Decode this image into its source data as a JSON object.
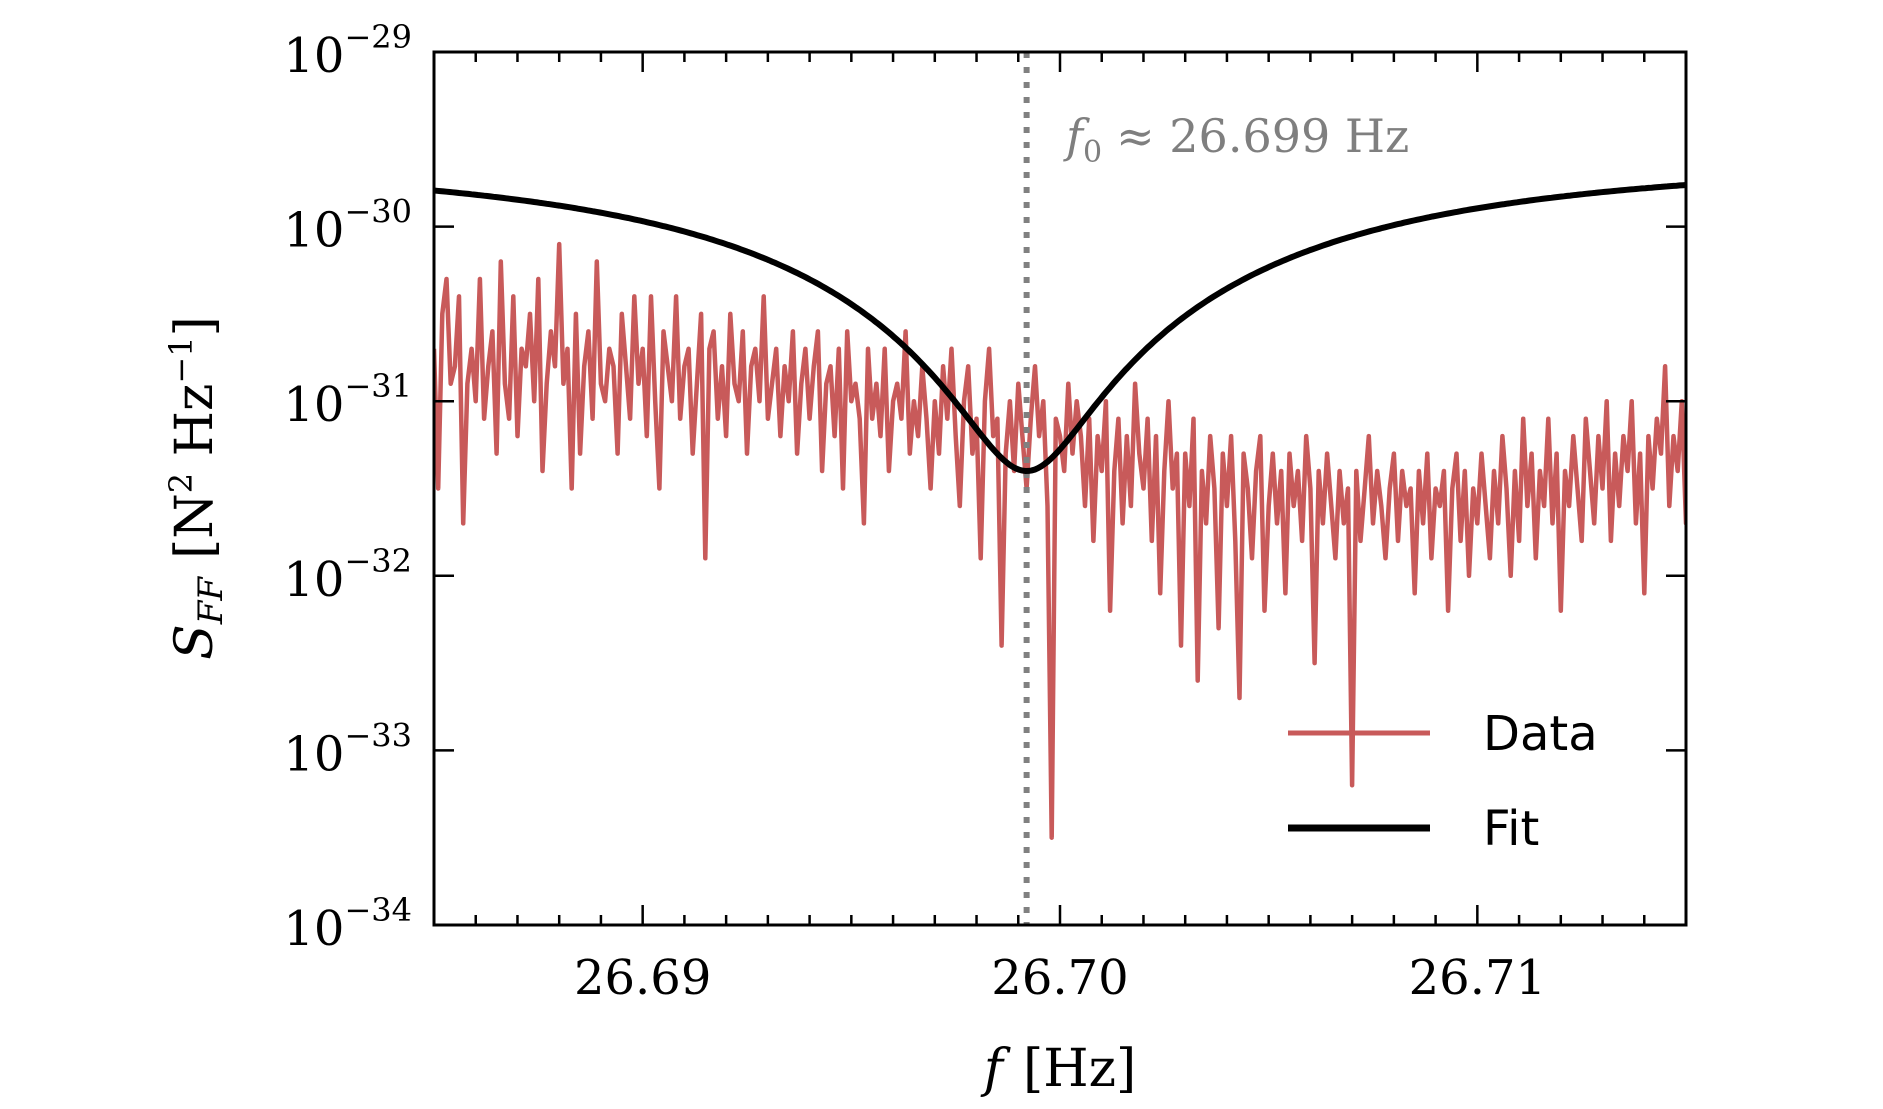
{
  "chart_data": {
    "type": "line",
    "title": "",
    "xlabel": {
      "symbol": "f",
      "unit": "[Hz]"
    },
    "ylabel": {
      "symbol": "S",
      "subscript": "FF",
      "unit_open": "[N",
      "unit_sq": "2",
      "unit_mid": " Hz",
      "unit_exp": "−1",
      "unit_close": "]"
    },
    "x_scale": "linear",
    "y_scale": "log",
    "xlim": [
      26.685,
      26.715
    ],
    "ylim_log10": [
      -34,
      -29
    ],
    "x_ticks": [
      {
        "value": 26.69,
        "label": "26.69"
      },
      {
        "value": 26.7,
        "label": "26.70"
      },
      {
        "value": 26.71,
        "label": "26.71"
      }
    ],
    "x_minor_step": 0.001,
    "y_ticks": [
      {
        "exp": -29,
        "base": "10",
        "sup": "−29"
      },
      {
        "exp": -30,
        "base": "10",
        "sup": "−30"
      },
      {
        "exp": -31,
        "base": "10",
        "sup": "−31"
      },
      {
        "exp": -32,
        "base": "10",
        "sup": "−32"
      },
      {
        "exp": -33,
        "base": "10",
        "sup": "−33"
      },
      {
        "exp": -34,
        "base": "10",
        "sup": "−34"
      }
    ],
    "grid": false,
    "legend_position": "lower-right",
    "vline": {
      "x": 26.6992,
      "style": "dotted",
      "color": "#808080"
    },
    "annotation": {
      "symbol": "f",
      "subscript": "0",
      "text": "≈ 26.699 Hz"
    },
    "series": [
      {
        "name": "Data",
        "color": "#c85a5a",
        "x_start": 26.685,
        "x_step": 0.0001,
        "log10_values": [
          -30.7,
          -31.5,
          -30.5,
          -30.3,
          -30.9,
          -30.8,
          -30.4,
          -31.7,
          -30.9,
          -30.7,
          -31.0,
          -30.3,
          -31.1,
          -30.8,
          -30.6,
          -31.3,
          -30.2,
          -30.9,
          -31.1,
          -30.4,
          -31.2,
          -30.7,
          -30.8,
          -30.5,
          -31.0,
          -30.3,
          -31.4,
          -30.9,
          -30.6,
          -30.8,
          -30.1,
          -30.9,
          -30.7,
          -31.5,
          -30.5,
          -31.3,
          -30.8,
          -30.6,
          -31.1,
          -30.2,
          -30.9,
          -31.0,
          -30.7,
          -30.8,
          -31.3,
          -30.5,
          -30.8,
          -31.1,
          -30.4,
          -30.9,
          -30.7,
          -31.2,
          -30.4,
          -31.0,
          -31.5,
          -30.6,
          -30.8,
          -31.0,
          -30.4,
          -31.1,
          -30.8,
          -30.7,
          -31.3,
          -30.9,
          -30.5,
          -31.9,
          -30.7,
          -30.6,
          -31.1,
          -30.8,
          -31.2,
          -30.5,
          -30.9,
          -31.0,
          -30.6,
          -31.3,
          -30.8,
          -30.7,
          -31.0,
          -30.4,
          -31.1,
          -30.9,
          -30.7,
          -31.2,
          -30.8,
          -31.0,
          -30.6,
          -31.3,
          -30.9,
          -30.7,
          -31.1,
          -30.8,
          -30.6,
          -31.4,
          -30.9,
          -30.8,
          -31.2,
          -30.7,
          -31.5,
          -30.6,
          -31.0,
          -30.9,
          -31.1,
          -31.7,
          -30.7,
          -31.1,
          -30.9,
          -31.2,
          -30.7,
          -31.4,
          -31.0,
          -30.9,
          -31.1,
          -30.6,
          -31.3,
          -31.0,
          -31.2,
          -30.8,
          -31.1,
          -31.5,
          -31.0,
          -31.3,
          -30.8,
          -31.1,
          -30.7,
          -31.2,
          -31.6,
          -31.0,
          -30.8,
          -31.3,
          -31.1,
          -31.9,
          -31.0,
          -30.7,
          -31.2,
          -31.1,
          -32.4,
          -31.3,
          -31.0,
          -31.4,
          -30.9,
          -31.2,
          -31.5,
          -31.1,
          -30.8,
          -31.2,
          -31.0,
          -31.6,
          -33.5,
          -31.1,
          -31.2,
          -31.4,
          -30.9,
          -31.3,
          -31.0,
          -31.2,
          -31.6,
          -31.1,
          -31.8,
          -31.2,
          -31.4,
          -31.0,
          -32.2,
          -31.4,
          -31.1,
          -31.7,
          -31.2,
          -31.6,
          -30.9,
          -31.3,
          -31.5,
          -31.1,
          -31.8,
          -31.2,
          -32.1,
          -31.4,
          -31.0,
          -31.5,
          -31.3,
          -32.4,
          -31.3,
          -31.6,
          -31.1,
          -32.6,
          -31.4,
          -31.7,
          -31.2,
          -31.5,
          -32.3,
          -31.3,
          -31.6,
          -31.2,
          -31.8,
          -32.7,
          -31.3,
          -31.5,
          -31.9,
          -31.4,
          -31.2,
          -32.2,
          -31.6,
          -31.3,
          -31.7,
          -31.4,
          -32.1,
          -31.3,
          -31.6,
          -31.4,
          -31.8,
          -31.2,
          -31.5,
          -32.5,
          -31.4,
          -31.7,
          -31.3,
          -31.6,
          -31.9,
          -31.4,
          -31.7,
          -31.5,
          -33.2,
          -31.4,
          -31.8,
          -31.5,
          -31.2,
          -31.7,
          -31.4,
          -31.6,
          -31.9,
          -31.5,
          -31.3,
          -31.8,
          -31.4,
          -31.6,
          -31.5,
          -32.1,
          -31.4,
          -31.7,
          -31.3,
          -31.9,
          -31.5,
          -31.6,
          -31.4,
          -32.2,
          -31.5,
          -31.3,
          -31.8,
          -31.4,
          -32.0,
          -31.5,
          -31.7,
          -31.3,
          -31.6,
          -31.9,
          -31.4,
          -31.7,
          -31.2,
          -31.5,
          -32.0,
          -31.4,
          -31.8,
          -31.1,
          -31.6,
          -31.3,
          -31.9,
          -31.4,
          -31.6,
          -31.1,
          -31.7,
          -31.3,
          -32.2,
          -31.4,
          -31.6,
          -31.2,
          -31.5,
          -31.8,
          -31.1,
          -31.4,
          -31.7,
          -31.2,
          -31.5,
          -31.0,
          -31.8,
          -31.3,
          -31.6,
          -31.2,
          -31.4,
          -31.0,
          -31.7,
          -31.3,
          -32.1,
          -31.2,
          -31.5,
          -31.1,
          -31.3,
          -30.8,
          -31.6,
          -31.2,
          -31.4,
          -31.0,
          -31.7,
          -31.2,
          -31.4,
          -31.0,
          -31.3,
          -31.6,
          -30.9,
          -31.3,
          -31.1,
          -31.5,
          -31.0,
          -31.2,
          -30.8,
          -31.6,
          -31.1,
          -31.3,
          -30.9,
          -31.4,
          -31.0,
          -31.2,
          -30.8,
          -31.5,
          -31.1,
          -31.3,
          -30.9,
          -31.2,
          -30.7,
          -31.4,
          -31.0,
          -31.2,
          -30.8,
          -31.6,
          -31.0,
          -31.2,
          -30.7,
          -31.3,
          -30.9,
          -31.1,
          -30.7,
          -31.4,
          -30.9,
          -31.2,
          -30.8,
          -31.0,
          -30.6,
          -31.3,
          -30.9,
          -31.1,
          -30.7,
          -31.5,
          -30.8,
          -31.0,
          -30.6,
          -31.2,
          -30.9,
          -31.1,
          -30.6,
          -31.3,
          -30.8,
          -31.0,
          -30.6,
          -31.1,
          -30.7,
          -31.4,
          -30.8,
          -31.0,
          -30.5,
          -31.2,
          -30.7,
          -30.9,
          -30.6,
          -31.1,
          -30.7,
          -30.9,
          -30.5,
          -31.3,
          -30.7,
          -30.9,
          -30.4,
          -31.0,
          -30.6,
          -31.2,
          -30.7,
          -30.9,
          -30.5,
          -31.1,
          -30.6,
          -30.8,
          -30.4,
          -31.0,
          -30.6,
          -30.8,
          -30.3,
          -31.2,
          -30.6,
          -30.8,
          -30.4,
          -30.9,
          -30.5,
          -31.1,
          -30.6,
          -30.8,
          -30.3,
          -31.0,
          -30.5,
          -30.7,
          -30.3,
          -30.9,
          -30.5,
          -30.7,
          -30.2,
          -31.1,
          -30.5,
          -30.7,
          -30.3,
          -30.8,
          -30.4,
          -31.0,
          -30.5,
          -30.7,
          -30.2,
          -30.9,
          -30.4,
          -30.6,
          -30.2,
          -30.8,
          -30.4,
          -30.6,
          -30.1,
          -31.0,
          -30.4,
          -30.6,
          -30.2,
          -30.7,
          -30.3,
          -30.9,
          -30.4,
          -30.6,
          -30.1,
          -30.8,
          -30.3,
          -30.5,
          -29.6,
          -30.7,
          -30.3,
          -30.5,
          -30.1,
          -32.4,
          -30.3,
          -30.6,
          -30.1,
          -30.7,
          -30.2,
          -30.9,
          -30.3,
          -30.5,
          -30.0
        ]
      },
      {
        "name": "Fit",
        "color": "#000000",
        "model": "lorentzian_dip",
        "params": {
          "f0": 26.6992,
          "floor_log10": -31.4,
          "gamma": 0.011,
          "amp_log10": -29.6
        }
      }
    ]
  }
}
